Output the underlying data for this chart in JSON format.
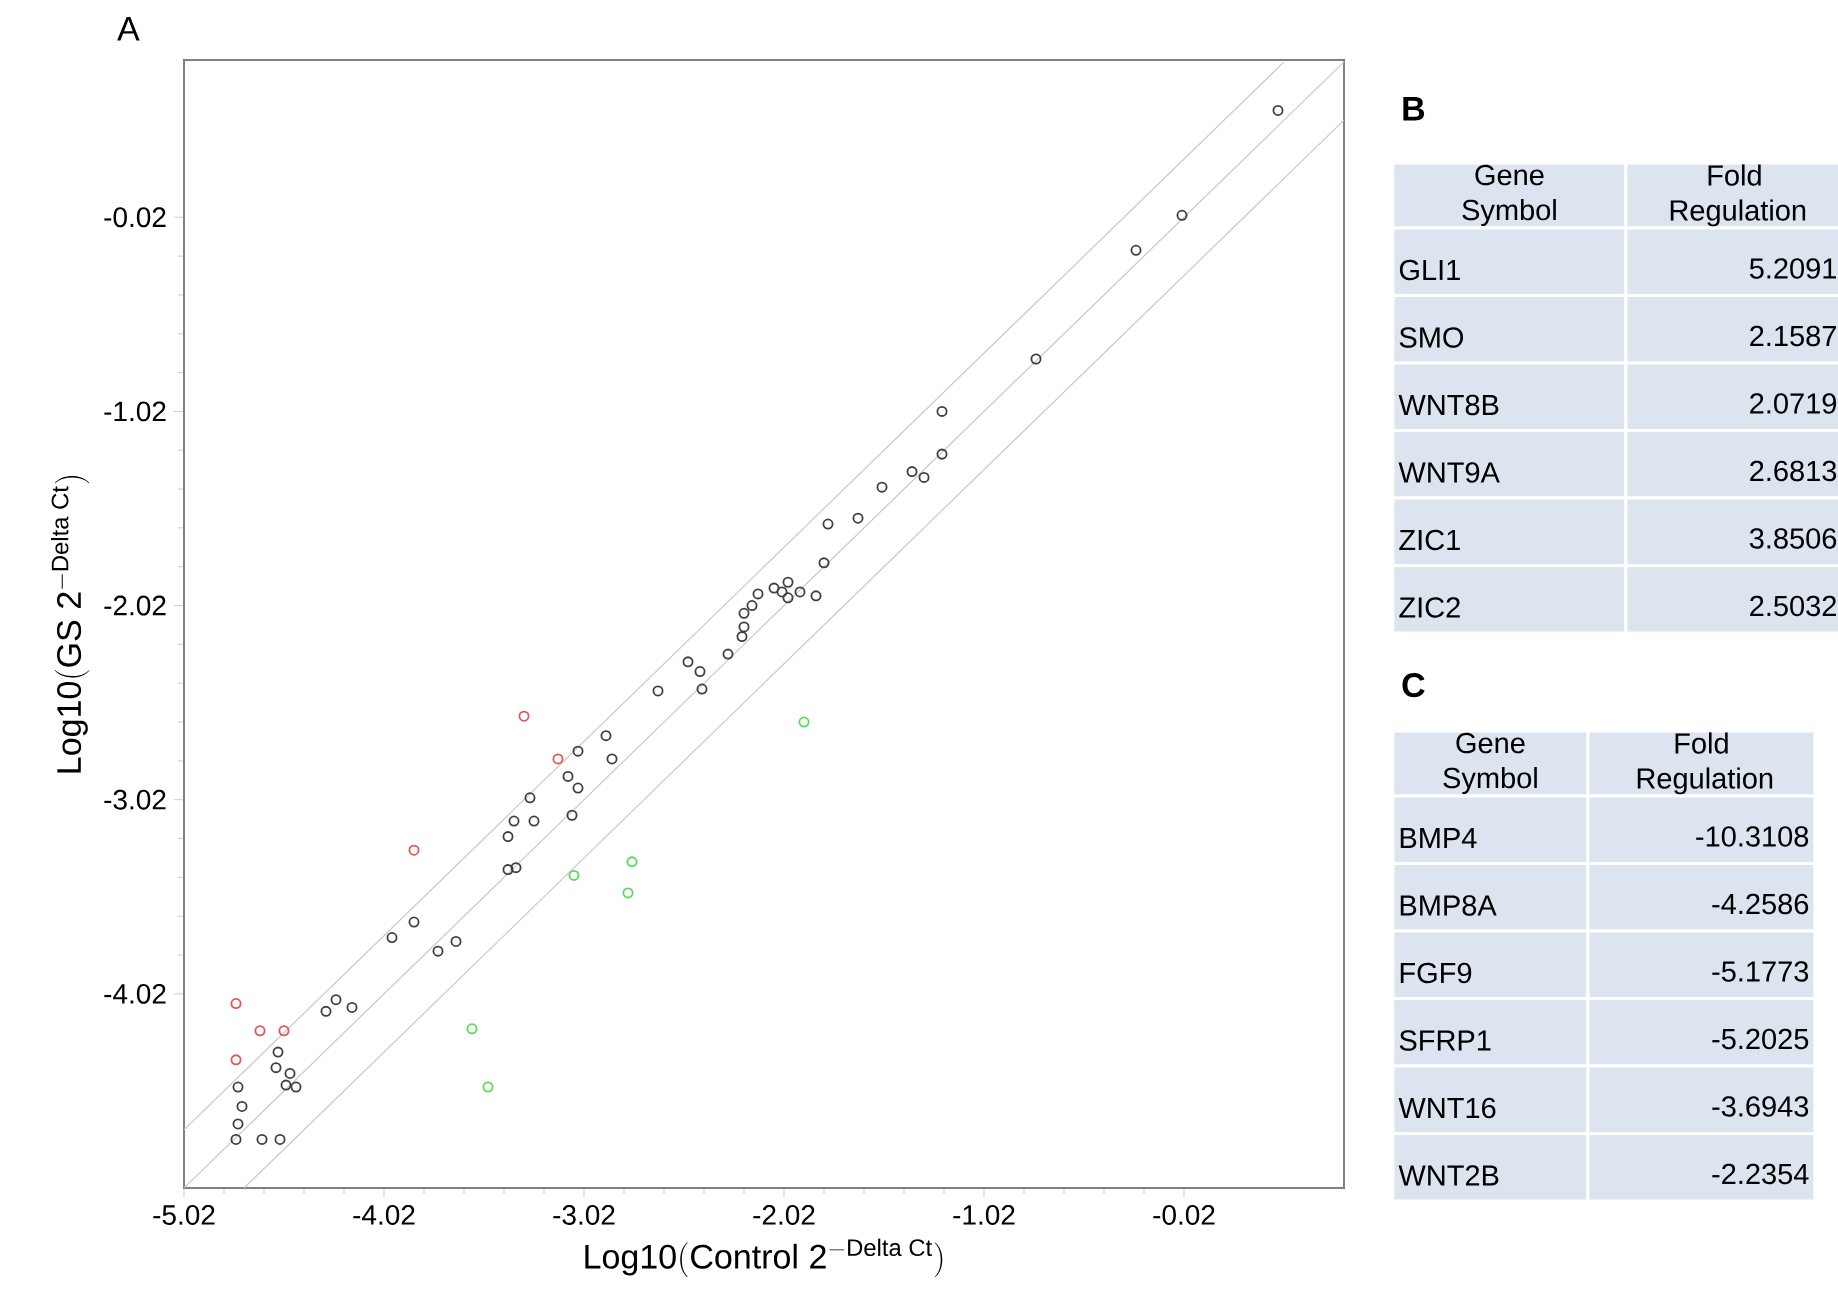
{
  "chart_data": [
    {
      "type": "scatter",
      "title": "A",
      "xlabel": "\\mathrm{Log10(Control\\;2^{-Delta\\;Ct})}",
      "ylabel": "\\mathrm{Log10(GS\\;2^{-Delta\\;Ct})}",
      "xlim": [
        -5.02,
        0.78
      ],
      "ylim": [
        -5.02,
        0.79
      ],
      "xticks": [
        -5.02,
        -4.02,
        -3.02,
        -2.02,
        -1.02,
        -0.02
      ],
      "yticks": [
        -4.02,
        -3.02,
        -2.02,
        -1.02,
        -0.02
      ],
      "marker": "circle",
      "series": [
        {
          "type": "scatter",
          "color": "#404040",
          "x": [
            -4.75,
            -4.73,
            -4.75,
            -4.76,
            -4.63,
            -4.54,
            -4.55,
            -4.56,
            -4.49,
            -4.51,
            -4.46,
            -4.31,
            -4.26,
            -4.18,
            -3.98,
            -3.87,
            -3.75,
            -3.66,
            -3.4,
            -3.36,
            -3.4,
            -3.37,
            -3.29,
            -3.27,
            -3.08,
            -3.1,
            -3.05,
            -3.05,
            -2.91,
            -2.88,
            -2.65,
            -2.5,
            -2.44,
            -2.43,
            -2.3,
            -2.23,
            -2.22,
            -2.22,
            -2.18,
            -2.15,
            -2.07,
            -2.03,
            -2.0,
            -2.0,
            -1.94,
            -1.86,
            -1.82,
            -1.8,
            -1.65,
            -1.53,
            -1.38,
            -1.32,
            -1.23,
            -1.23,
            -0.76,
            -0.26,
            -0.03,
            0.45
          ],
          "values": [
            -4.5,
            -4.6,
            -4.69,
            -4.77,
            -4.77,
            -4.77,
            -4.32,
            -4.4,
            -4.43,
            -4.49,
            -4.5,
            -4.11,
            -4.05,
            -4.09,
            -3.73,
            -3.65,
            -3.8,
            -3.75,
            -3.38,
            -3.37,
            -3.21,
            -3.13,
            -3.01,
            -3.13,
            -3.1,
            -2.9,
            -2.96,
            -2.77,
            -2.69,
            -2.81,
            -2.46,
            -2.31,
            -2.36,
            -2.45,
            -2.27,
            -2.18,
            -2.13,
            -2.06,
            -2.02,
            -1.96,
            -1.93,
            -1.95,
            -1.9,
            -1.98,
            -1.95,
            -1.97,
            -1.8,
            -1.6,
            -1.57,
            -1.41,
            -1.33,
            -1.36,
            -1.24,
            -1.02,
            -0.75,
            -0.19,
            -0.01,
            0.53
          ]
        },
        {
          "type": "scatter",
          "color": "#e05555",
          "x": [
            -4.76,
            -4.64,
            -4.52,
            -4.76,
            -3.87,
            -3.32,
            -3.15
          ],
          "values": [
            -4.07,
            -4.21,
            -4.21,
            -4.36,
            -3.28,
            -2.59,
            -2.81
          ]
        },
        {
          "type": "scatter",
          "color": "#55dd55",
          "x": [
            -3.58,
            -3.5,
            -3.07,
            -2.78,
            -2.8,
            -1.92
          ],
          "values": [
            -4.2,
            -4.5,
            -3.41,
            -3.34,
            -3.5,
            -2.62
          ]
        },
        {
          "type": "line",
          "marker": "none",
          "color": "#c8c8c8",
          "x": [
            -5.02,
            0.78
          ],
          "values": [
            -5.02,
            0.78
          ]
        },
        {
          "type": "line",
          "marker": "none",
          "color": "#c8c8c8",
          "x": [
            -5.02,
            0.48
          ],
          "values": [
            -4.72,
            0.78
          ]
        },
        {
          "type": "line",
          "marker": "none",
          "color": "#c8c8c8",
          "x": [
            -4.72,
            0.78
          ],
          "values": [
            -5.02,
            0.48
          ]
        }
      ]
    },
    {
      "type": "other",
      "title": "B",
      "annotations": [
        "Gene Symbol",
        "Fold Regulation"
      ],
      "categories": [
        "GLI1",
        "SMO",
        "WNT8B",
        "WNT9A",
        "ZIC1",
        "ZIC2"
      ],
      "values": [
        5.2091,
        2.1587,
        2.0719,
        2.6813,
        3.8506,
        2.5032
      ],
      "data_labels": true
    },
    {
      "type": "other",
      "title": "C",
      "annotations": [
        "Gene Symbol",
        "Fold Regulation"
      ],
      "categories": [
        "BMP4",
        "BMP8A",
        "FGF9",
        "SFRP1",
        "WNT16",
        "WNT2B"
      ],
      "values": [
        -10.3108,
        -4.2586,
        -5.1773,
        -5.2025,
        -3.6943,
        -2.2354
      ],
      "data_labels": true
    }
  ]
}
